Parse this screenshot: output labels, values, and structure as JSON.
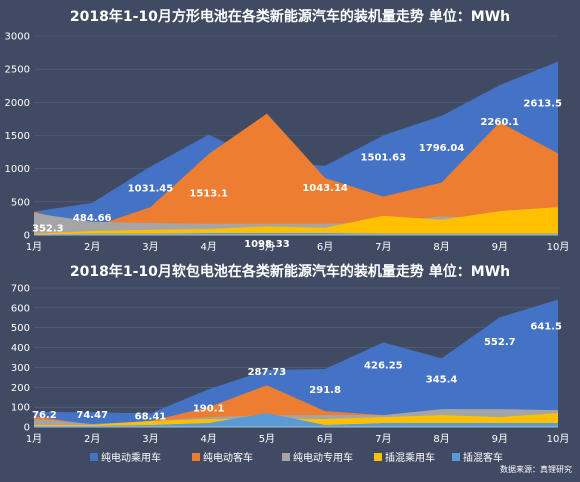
{
  "charts": [
    {
      "type": "area",
      "title": "2018年1-10月方形电池在各类新能源汽车的装机量走势 单位：MWh",
      "ylim": [
        0,
        3000
      ],
      "yticks": [
        0,
        500,
        1000,
        1500,
        2000,
        2500,
        3000
      ],
      "categories": [
        "1月",
        "2月",
        "3月",
        "4月",
        "5月",
        "6月",
        "7月",
        "8月",
        "9月",
        "10月"
      ],
      "series": [
        {
          "name": "纯电动乘用车",
          "color": "#4472c4",
          "values": [
            352.3,
            484.66,
            1031.45,
            1513.1,
            1098.33,
            1043.14,
            1501.63,
            1796.04,
            2260.1,
            2613.5
          ]
        },
        {
          "name": "纯电动客车",
          "color": "#ed7d31",
          "values": [
            352,
            120,
            420,
            1220,
            1830,
            860,
            580,
            790,
            1700,
            1230
          ]
        },
        {
          "name": "纯电动专用车",
          "color": "#a5a5a5",
          "values": [
            330,
            200,
            180,
            170,
            170,
            170,
            190,
            280,
            250,
            200
          ]
        },
        {
          "name": "插混乘用车",
          "color": "#ffc000",
          "values": [
            20,
            60,
            80,
            90,
            130,
            110,
            290,
            230,
            360,
            420
          ]
        },
        {
          "name": "插混客车",
          "color": "#5b9bd5",
          "values": [
            10,
            20,
            20,
            30,
            30,
            30,
            20,
            20,
            20,
            20
          ]
        }
      ],
      "data_labels": [
        "352.3",
        "484.66",
        "1031.45",
        "1513.1",
        "1098.33",
        "1043.14",
        "1501.63",
        "1796.04",
        "2260.1",
        "2613.5"
      ]
    },
    {
      "type": "area",
      "title": "2018年1-10月软包电池在各类新能源汽车的装机量走势 单位：MWh",
      "ylim": [
        0,
        700
      ],
      "yticks": [
        0,
        100,
        200,
        300,
        400,
        500,
        600,
        700
      ],
      "categories": [
        "1月",
        "2月",
        "3月",
        "4月",
        "5月",
        "6月",
        "7月",
        "8月",
        "9月",
        "10月"
      ],
      "series": [
        {
          "name": "纯电动乘用车",
          "color": "#4472c4",
          "values": [
            76.2,
            74.47,
            68.41,
            190.1,
            287.73,
            291.8,
            426.25,
            345.4,
            552.7,
            641.5
          ]
        },
        {
          "name": "纯电动客车",
          "color": "#ed7d31",
          "values": [
            55,
            10,
            30,
            100,
            210,
            80,
            60,
            70,
            60,
            70
          ]
        },
        {
          "name": "纯电动专用车",
          "color": "#a5a5a5",
          "values": [
            40,
            15,
            30,
            50,
            60,
            60,
            60,
            90,
            90,
            85
          ]
        },
        {
          "name": "插混乘用车",
          "color": "#ffc000",
          "values": [
            10,
            10,
            30,
            40,
            40,
            40,
            50,
            60,
            50,
            70
          ]
        },
        {
          "name": "插混客车",
          "color": "#5b9bd5",
          "values": [
            5,
            5,
            10,
            20,
            70,
            10,
            20,
            20,
            20,
            20
          ]
        }
      ],
      "data_labels": [
        "76.2",
        "74.47",
        "68.41",
        "190.1",
        "287.73",
        "291.8",
        "426.25",
        "345.4",
        "552.7",
        "641.5"
      ]
    }
  ],
  "legend": [
    {
      "label": "纯电动乘用车",
      "color": "#4472c4"
    },
    {
      "label": "纯电动客车",
      "color": "#ed7d31"
    },
    {
      "label": "纯电动专用车",
      "color": "#a5a5a5"
    },
    {
      "label": "插混乘用车",
      "color": "#ffc000"
    },
    {
      "label": "插混客车",
      "color": "#5b9bd5"
    }
  ],
  "source": "数据来源：真锂研究"
}
